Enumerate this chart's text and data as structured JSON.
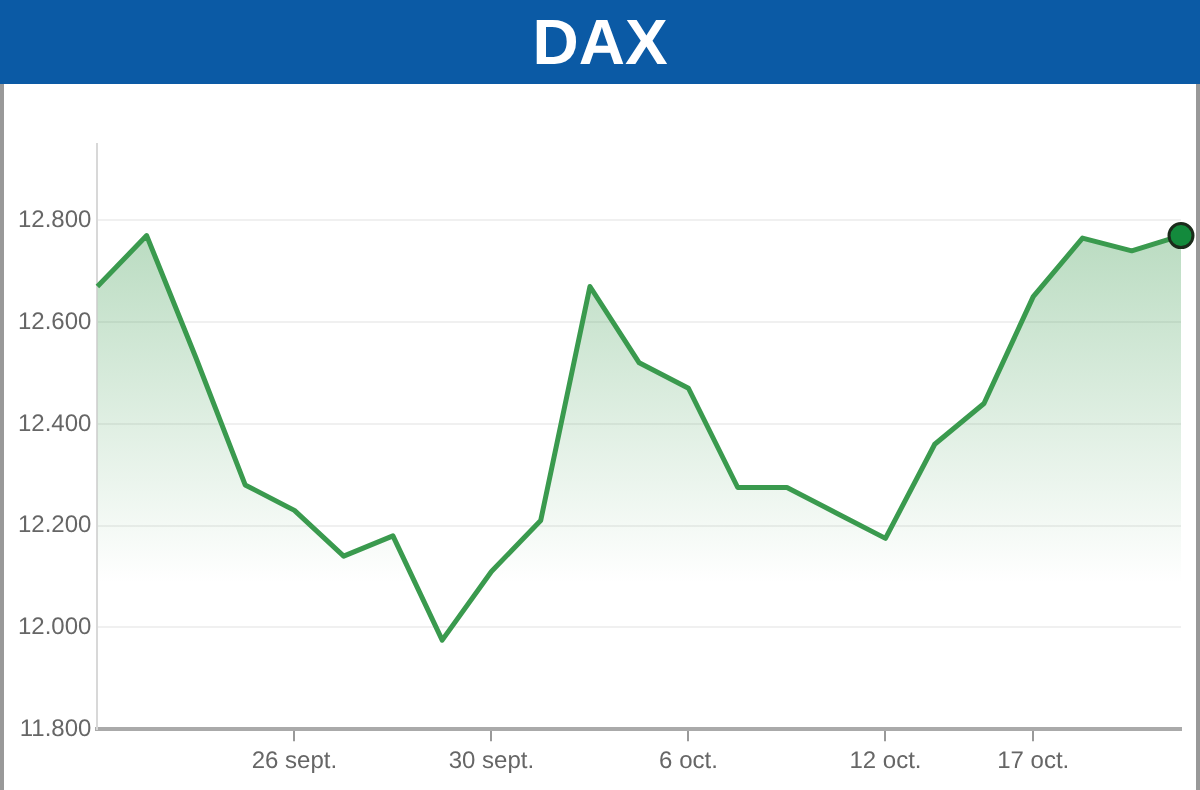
{
  "chart_data": {
    "type": "area",
    "title": "DAX",
    "categories": [
      null,
      null,
      null,
      null,
      "26 sept.",
      null,
      null,
      null,
      "30 sept.",
      null,
      null,
      null,
      "6 oct.",
      null,
      null,
      null,
      "12 oct.",
      null,
      null,
      "17 oct.",
      null,
      null,
      null
    ],
    "series": [
      {
        "color": "#3a9a4e",
        "values": [
          12670,
          12770,
          12530,
          12280,
          12230,
          12140,
          12180,
          11975,
          12110,
          12210,
          12670,
          12520,
          12470,
          12275,
          12275,
          12225,
          12175,
          12360,
          12440,
          12650,
          12765,
          12740,
          12770
        ]
      },
      {
        "type": "scatter",
        "color": "#138a3c",
        "values": [
          null,
          null,
          null,
          null,
          null,
          null,
          null,
          null,
          null,
          null,
          null,
          null,
          null,
          null,
          null,
          null,
          null,
          null,
          null,
          null,
          null,
          null,
          12770
        ]
      }
    ],
    "ylim": [
      11800,
      12950
    ],
    "yticks": [
      {
        "value": 11800,
        "label": "11.800"
      },
      {
        "value": 12000,
        "label": "12.000"
      },
      {
        "value": 12200,
        "label": "12.200"
      },
      {
        "value": 12400,
        "label": "12.400"
      },
      {
        "value": 12600,
        "label": "12.600"
      },
      {
        "value": 12800,
        "label": "12.800"
      }
    ],
    "grid": "y"
  }
}
